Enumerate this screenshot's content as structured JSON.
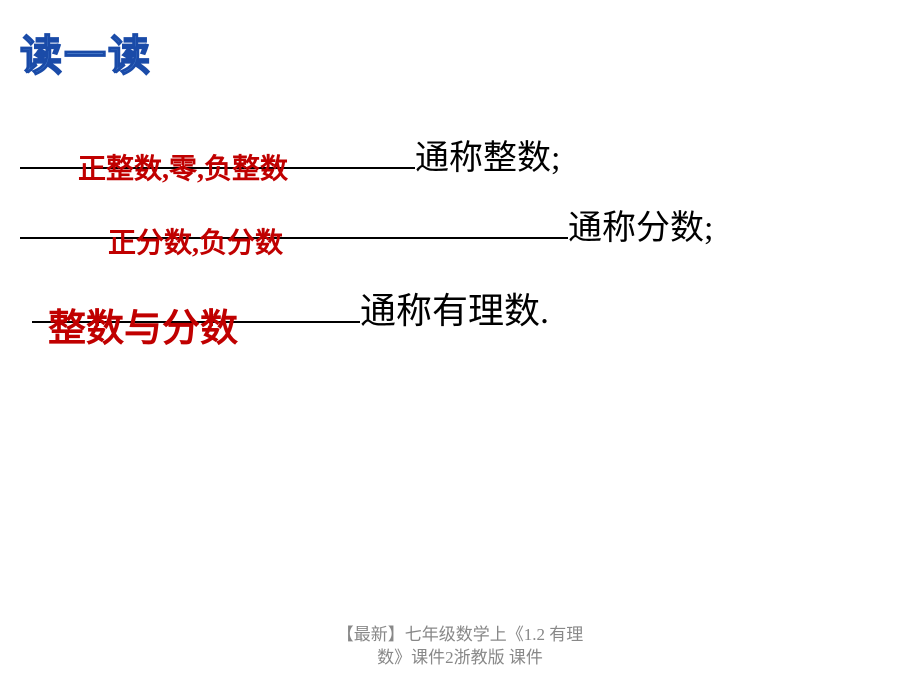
{
  "header": {
    "title": "读一读"
  },
  "rows": [
    {
      "fill": "正整数,零,负整数",
      "label": "通称整数;"
    },
    {
      "fill": "正分数,负分数",
      "label": "通称分数;"
    },
    {
      "fill": "整数与分数",
      "label": "通称有理数."
    }
  ],
  "footer": {
    "line1": "【最新】七年级数学上《1.2 有理",
    "line2": "数》课件2浙教版 课件"
  },
  "colors": {
    "fill_text": "#c00000",
    "label_text": "#000000",
    "header_fill": "#5a8dd8",
    "header_stroke": "#1a4ba8",
    "underline": "#000000",
    "footer": "#888888",
    "background": "#ffffff"
  }
}
